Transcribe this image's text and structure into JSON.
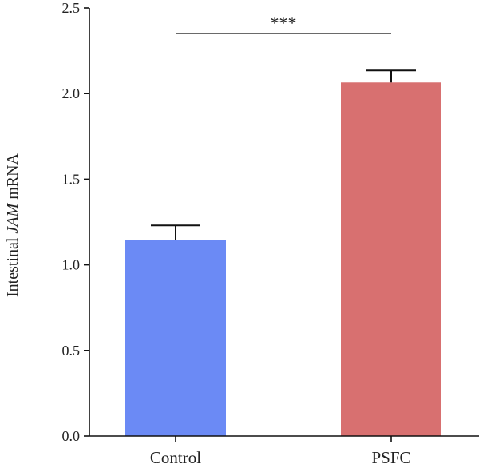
{
  "chart_data": {
    "type": "bar",
    "categories": [
      "Control",
      "PSFC"
    ],
    "values": [
      1.145,
      2.065
    ],
    "errors": [
      0.085,
      0.07
    ],
    "colors": [
      "#6b8af5",
      "#d87070"
    ],
    "ylabel_prefix": "Intestinal ",
    "ylabel_italic": "JAM",
    "ylabel_suffix": " mRNA",
    "ylim": [
      0,
      2.5
    ],
    "yticks": [
      0.0,
      0.5,
      1.0,
      1.5,
      2.0,
      2.5
    ],
    "ytick_labels": [
      "0.0",
      "0.5",
      "1.0",
      "1.5",
      "2.0",
      "2.5"
    ],
    "significance": {
      "text": "***",
      "between": [
        "Control",
        "PSFC"
      ],
      "y": 2.35
    },
    "grid": false,
    "legend": "none"
  }
}
